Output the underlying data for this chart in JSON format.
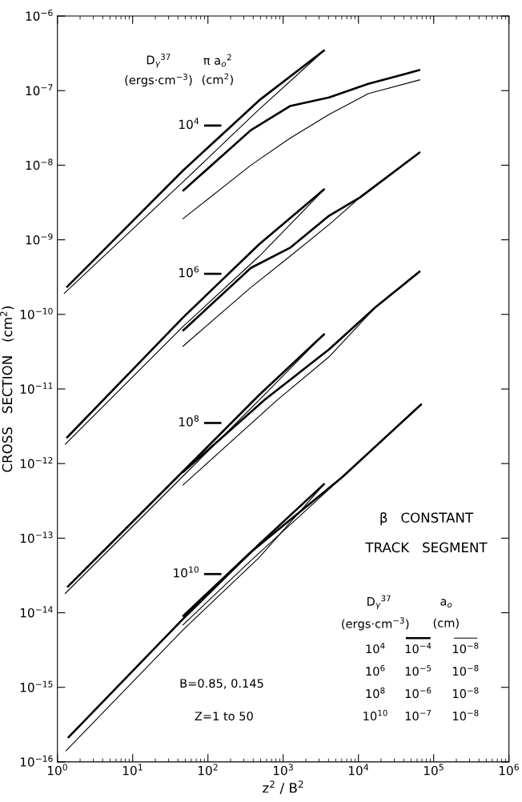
{
  "chart_data": {
    "type": "line",
    "xlabel": "z$^{2}$ / B$^{2}$",
    "ylabel": "CROSS   SECTION   (cm$^{2}$)",
    "log": "xy",
    "grid": false,
    "marker": "none",
    "line_style": "solid",
    "xlim": [
      1,
      1000000
    ],
    "ylim": [
      1e-16,
      1e-06
    ],
    "xticks": [
      {
        "value": 1,
        "label": "10$^{0}$"
      },
      {
        "value": 10,
        "label": "10$^{1}$"
      },
      {
        "value": 100,
        "label": "10$^{2}$"
      },
      {
        "value": 1000,
        "label": "10$^{3}$"
      },
      {
        "value": 10000,
        "label": "10$^{4}$"
      },
      {
        "value": 100000,
        "label": "10$^{5}$"
      },
      {
        "value": 1000000,
        "label": "10$^{6}$"
      }
    ],
    "yticks": [
      {
        "value": 1e-16,
        "label": "10$^{−16}$"
      },
      {
        "value": 1e-15,
        "label": "10$^{−15}$"
      },
      {
        "value": 1e-14,
        "label": "10$^{−14}$"
      },
      {
        "value": 1e-13,
        "label": "10$^{−13}$"
      },
      {
        "value": 1e-12,
        "label": "10$^{−12}$"
      },
      {
        "value": 1e-11,
        "label": "10$^{−11}$"
      },
      {
        "value": 1e-10,
        "label": "10$^{−10}$"
      },
      {
        "value": 1e-09,
        "label": "10$^{−9}$"
      },
      {
        "value": 1e-08,
        "label": "10$^{−8}$"
      },
      {
        "value": 1e-07,
        "label": "10$^{−7}$"
      },
      {
        "value": 1e-06,
        "label": "10$^{−6}$"
      }
    ],
    "series": [
      {
        "color": "#000000",
        "x": [
          1.32,
          46.8,
          479,
          3550
        ],
        "values": [
          2.3e-10,
          8.5e-09,
          7.4e-08,
          3.5e-07
        ]
      },
      {
        "color": "#000000",
        "x": [
          1.22,
          46.8,
          479,
          3550
        ],
        "values": [
          1.9e-10,
          6e-09,
          5.6e-08,
          3.5e-07
        ]
      },
      {
        "color": "#000000",
        "x": [
          46.1,
          372,
          1230,
          4070,
          13500,
          66100
        ],
        "values": [
          4.5e-09,
          2.95e-08,
          6.2e-08,
          8.1e-08,
          1.23e-07,
          1.9e-07
        ]
      },
      {
        "color": "#000000",
        "x": [
          46.1,
          372,
          1230,
          4070,
          13500,
          66100
        ],
        "values": [
          1.9e-09,
          1e-08,
          2.3e-08,
          4.8e-08,
          9.1e-08,
          1.4e-07
        ]
      },
      {
        "color": "#000000",
        "x": [
          1.32,
          46.8,
          479,
          3550
        ],
        "values": [
          2.2e-12,
          9.1e-11,
          8.7e-10,
          4.8e-09
        ]
      },
      {
        "color": "#000000",
        "x": [
          1.26,
          46.8,
          479,
          3550
        ],
        "values": [
          1.8e-12,
          6.9e-11,
          6e-10,
          4.8e-09
        ]
      },
      {
        "color": "#000000",
        "x": [
          46.1,
          372,
          1230,
          4070,
          10500,
          66100
        ],
        "values": [
          6e-11,
          4.2e-10,
          7.8e-10,
          2.1e-09,
          3.7e-09,
          1.5e-08
        ]
      },
      {
        "color": "#000000",
        "x": [
          46.1,
          372,
          1230,
          4070,
          10500,
          66100
        ],
        "values": [
          3.7e-11,
          2.3e-10,
          6e-10,
          1.6e-09,
          3.7e-09,
          1.5e-08
        ]
      },
      {
        "color": "#000000",
        "x": [
          1.35,
          46.8,
          479,
          3550
        ],
        "values": [
          2.2e-14,
          7.9e-13,
          8.3e-12,
          5.5e-11
        ]
      },
      {
        "color": "#000000",
        "x": [
          1.26,
          46.8,
          479,
          3550
        ],
        "values": [
          1.8e-14,
          6.8e-13,
          7.1e-12,
          5.5e-11
        ]
      },
      {
        "color": "#000000",
        "x": [
          46.1,
          562,
          4070,
          17000,
          66100
        ],
        "values": [
          7.6e-13,
          7.1e-12,
          3.4e-11,
          1.26e-10,
          3.8e-10
        ]
      },
      {
        "color": "#000000",
        "x": [
          46.1,
          832,
          4070,
          17000,
          66100
        ],
        "values": [
          5.1e-13,
          7.1e-12,
          2.7e-11,
          1.26e-10,
          3.8e-10
        ]
      },
      {
        "color": "#000000",
        "x": [
          1.38,
          46.8,
          479,
          3550
        ],
        "values": [
          2.1e-16,
          8.3e-15,
          8.3e-14,
          5.4e-13
        ]
      },
      {
        "color": "#000000",
        "x": [
          1.29,
          46.8,
          479,
          3550
        ],
        "values": [
          1.4e-16,
          5.9e-15,
          5.5e-14,
          5.4e-13
        ]
      },
      {
        "color": "#000000",
        "x": [
          46.1,
          372,
          6030,
          69200
        ],
        "values": [
          8.9e-15,
          6.5e-14,
          6.5e-13,
          6.3e-12
        ]
      },
      {
        "color": "#000000",
        "x": [
          46.1,
          372,
          6030,
          69200
        ],
        "values": [
          6.8e-15,
          5e-14,
          6.5e-13,
          6.3e-12
        ]
      },
      {
        "name": "10$^{4}$",
        "color": "#000000",
        "x": [
          89,
          151
        ],
        "values": [
          3.4e-08,
          3.4e-08
        ]
      },
      {
        "name": "10$^{6}$",
        "color": "#000000",
        "x": [
          89,
          151
        ],
        "values": [
          3.5e-10,
          3.5e-10
        ]
      },
      {
        "name": "10$^{8}$",
        "color": "#000000",
        "x": [
          89,
          151
        ],
        "values": [
          3.5e-12,
          3.5e-12
        ]
      },
      {
        "name": "10$^{10}$",
        "color": "#000000",
        "x": [
          89,
          151
        ],
        "values": [
          3.3e-14,
          3.3e-14
        ]
      }
    ],
    "annotations": [
      "D$_{γ}$$^{37}$",
      "(ergs·cm$^{−3}$)",
      "π a$_{o}$$^{2}$",
      "(cm$^{2}$)",
      "β   CONSTANT",
      "TRACK   SEGMENT",
      "D$_{γ}$$^{37}$",
      "(ergs·cm$^{−3}$)",
      "a$_{o}$",
      "(cm)",
      "10$^{4}$",
      "10$^{−4}$",
      "10$^{−8}$",
      "10$^{6}$",
      "10$^{−5}$",
      "10$^{−8}$",
      "10$^{8}$",
      "10$^{−6}$",
      "10$^{−8}$",
      "10$^{10}$",
      "10$^{−7}$",
      "10$^{−8}$",
      "B=0.85, 0.145",
      "Z=1 to 50"
    ]
  }
}
